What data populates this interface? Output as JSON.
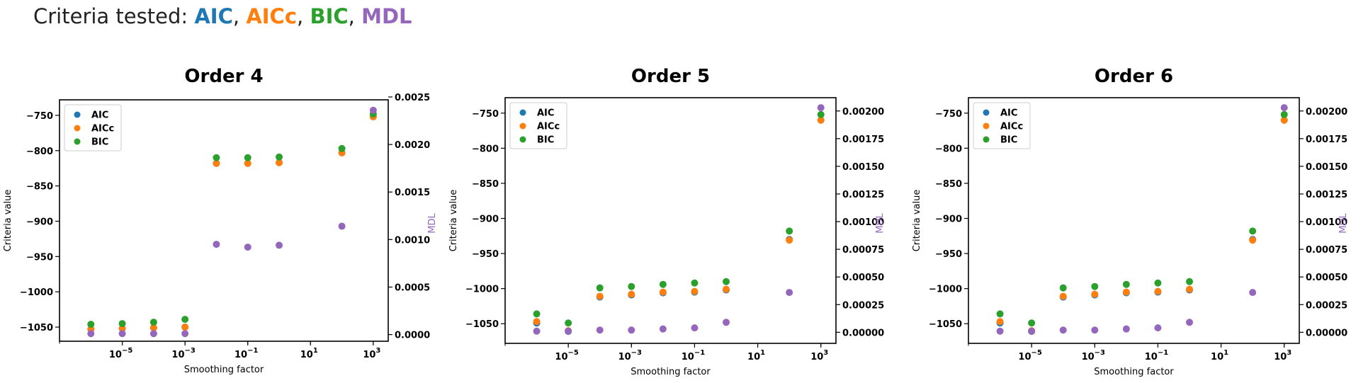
{
  "heading": {
    "prefix": "Criteria tested: ",
    "criteria": [
      {
        "name": "AIC",
        "color": "#1f77b4"
      },
      {
        "name": "AICc",
        "color": "#ff7f0e"
      },
      {
        "name": "BIC",
        "color": "#2ca02c"
      },
      {
        "name": "MDL",
        "color": "#9467bd"
      }
    ],
    "separator": ", "
  },
  "colors": {
    "AIC": "#1f77b4",
    "AICc": "#ff7f0e",
    "BIC": "#2ca02c",
    "MDL": "#9467bd"
  },
  "chart_data": [
    {
      "type": "scatter",
      "title": "Order 4",
      "xlabel": "Smoothing factor",
      "ylabel": "Criteria value",
      "y2label": "MDL",
      "xscale": "log",
      "xlim": [
        1e-07,
        3000
      ],
      "ylim": [
        -1070,
        -728
      ],
      "y2lim": [
        -7e-05,
        0.00247
      ],
      "xticks": [
        1e-05,
        0.001,
        0.1,
        10,
        1000
      ],
      "xtick_labels": [
        [
          "10",
          "−5"
        ],
        [
          "10",
          "−3"
        ],
        [
          "10",
          "−1"
        ],
        [
          "10",
          "1"
        ],
        [
          "10",
          "3"
        ]
      ],
      "yticks": [
        -750,
        -800,
        -850,
        -900,
        -950,
        -1000,
        -1050
      ],
      "ytick_labels": [
        "−750",
        "−800",
        "−850",
        "−900",
        "−950",
        "−1000",
        "−1050"
      ],
      "y2ticks": [
        0.0025,
        0.002,
        0.0015,
        0.001,
        0.0005,
        0.0
      ],
      "y2tick_labels": [
        "0.0025",
        "0.0020",
        "0.0015",
        "0.0010",
        "0.0005",
        "0.0000"
      ],
      "legend": "upper-left",
      "x": [
        1e-06,
        1e-05,
        0.0001,
        0.001,
        0.01,
        0.1,
        1,
        100,
        1000
      ],
      "series": [
        {
          "name": "AIC",
          "values": [
            -1053,
            -1052,
            -1051,
            -1050,
            -818,
            -818,
            -817,
            -803,
            -752
          ]
        },
        {
          "name": "AICc",
          "values": [
            -1053,
            -1052,
            -1051,
            -1050,
            -818,
            -818,
            -817,
            -803,
            -752
          ]
        },
        {
          "name": "BIC",
          "values": [
            -1046,
            -1045,
            -1043,
            -1039,
            -810,
            -810,
            -809,
            -797,
            -748
          ]
        },
        {
          "name": "MDL",
          "axis": "right",
          "values": [
            1e-05,
            1e-05,
            1e-05,
            1e-05,
            0.00095,
            0.00092,
            0.00094,
            0.00114,
            0.00236
          ]
        }
      ]
    },
    {
      "type": "scatter",
      "title": "Order 5",
      "xlabel": "Smoothing factor",
      "ylabel": "Criteria value",
      "y2label": "MDL",
      "xscale": "log",
      "xlim": [
        1e-07,
        3000
      ],
      "ylim": [
        -1078,
        -728
      ],
      "y2lim": [
        -0.0001,
        0.00212
      ],
      "xticks": [
        1e-05,
        0.001,
        0.1,
        10,
        1000
      ],
      "xtick_labels": [
        [
          "10",
          "−5"
        ],
        [
          "10",
          "−3"
        ],
        [
          "10",
          "−1"
        ],
        [
          "10",
          "1"
        ],
        [
          "10",
          "3"
        ]
      ],
      "yticks": [
        -750,
        -800,
        -850,
        -900,
        -950,
        -1000,
        -1050
      ],
      "ytick_labels": [
        "−750",
        "−800",
        "−850",
        "−900",
        "−950",
        "−1000",
        "−1050"
      ],
      "y2ticks": [
        0.002,
        0.00175,
        0.0015,
        0.00125,
        0.001,
        0.00075,
        0.0005,
        0.00025,
        0.0
      ],
      "y2tick_labels": [
        "0.00200",
        "0.00175",
        "0.00150",
        "0.00125",
        "0.00100",
        "0.00075",
        "0.00050",
        "0.00025",
        "0.00000"
      ],
      "legend": "upper-left",
      "x": [
        1e-06,
        1e-05,
        0.0001,
        0.001,
        0.01,
        0.1,
        1,
        100,
        1000
      ],
      "series": [
        {
          "name": "AIC",
          "values": [
            -1049,
            -1061,
            -1012,
            -1009,
            -1006,
            -1005,
            -1002,
            -930,
            -760
          ]
        },
        {
          "name": "AICc",
          "values": [
            -1047,
            -1060,
            -1011,
            -1008,
            -1005,
            -1004,
            -1001,
            -931,
            -760
          ]
        },
        {
          "name": "BIC",
          "values": [
            -1036,
            -1049,
            -999,
            -997,
            -994,
            -992,
            -990,
            -918,
            -752
          ]
        },
        {
          "name": "MDL",
          "axis": "right",
          "values": [
            1e-05,
            1e-05,
            2e-05,
            2e-05,
            3e-05,
            4e-05,
            9e-05,
            0.00036,
            0.00203
          ]
        }
      ]
    },
    {
      "type": "scatter",
      "title": "Order 6",
      "xlabel": "Smoothing factor",
      "ylabel": "Criteria value",
      "y2label": "MDL",
      "xscale": "log",
      "xlim": [
        1e-07,
        3000
      ],
      "ylim": [
        -1078,
        -728
      ],
      "y2lim": [
        -0.0001,
        0.00212
      ],
      "xticks": [
        1e-05,
        0.001,
        0.1,
        10,
        1000
      ],
      "xtick_labels": [
        [
          "10",
          "−5"
        ],
        [
          "10",
          "−3"
        ],
        [
          "10",
          "−1"
        ],
        [
          "10",
          "1"
        ],
        [
          "10",
          "3"
        ]
      ],
      "yticks": [
        -750,
        -800,
        -850,
        -900,
        -950,
        -1000,
        -1050
      ],
      "ytick_labels": [
        "−750",
        "−800",
        "−850",
        "−900",
        "−950",
        "−1000",
        "−1050"
      ],
      "y2ticks": [
        0.002,
        0.00175,
        0.0015,
        0.00125,
        0.001,
        0.00075,
        0.0005,
        0.00025,
        0.0
      ],
      "y2tick_labels": [
        "0.00200",
        "0.00175",
        "0.00150",
        "0.00125",
        "0.00100",
        "0.00075",
        "0.00050",
        "0.00025",
        "0.00000"
      ],
      "legend": "upper-left",
      "x": [
        1e-06,
        1e-05,
        0.0001,
        0.001,
        0.01,
        0.1,
        1,
        100,
        1000
      ],
      "series": [
        {
          "name": "AIC",
          "values": [
            -1049,
            -1061,
            -1012,
            -1009,
            -1006,
            -1005,
            -1002,
            -930,
            -760
          ]
        },
        {
          "name": "AICc",
          "values": [
            -1047,
            -1060,
            -1011,
            -1008,
            -1005,
            -1004,
            -1001,
            -931,
            -760
          ]
        },
        {
          "name": "BIC",
          "values": [
            -1036,
            -1049,
            -999,
            -997,
            -994,
            -992,
            -990,
            -918,
            -752
          ]
        },
        {
          "name": "MDL",
          "axis": "right",
          "values": [
            1e-05,
            1e-05,
            2e-05,
            2e-05,
            3e-05,
            4e-05,
            9e-05,
            0.00036,
            0.00203
          ]
        }
      ]
    }
  ]
}
